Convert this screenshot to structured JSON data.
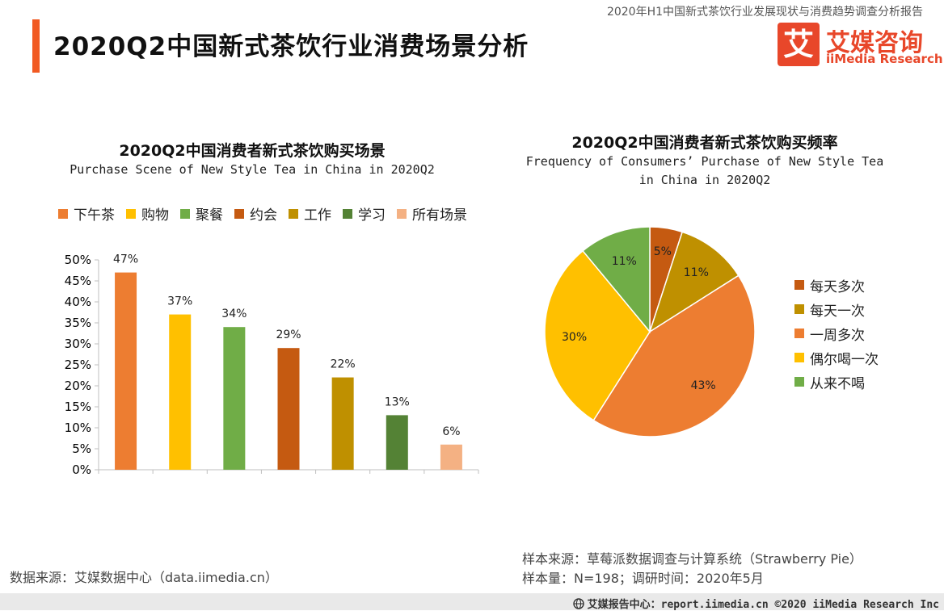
{
  "header": {
    "report_title": "2020年H1中国新式茶饮行业发展现状与消费趋势调查分析报告",
    "page_title": "2020Q2中国新式茶饮行业消费场景分析",
    "accent_color": "#f15a22"
  },
  "logo": {
    "mark": "艾",
    "name_cn": "艾媒咨询",
    "name_en": "iiMedia Research",
    "color": "#e8472a"
  },
  "chart_data": [
    {
      "type": "bar",
      "title": "2020Q2中国消费者新式茶饮购买场景",
      "subtitle": "Purchase Scene of New Style Tea in China in 2020Q2",
      "categories": [
        "下午茶",
        "购物",
        "聚餐",
        "约会",
        "工作",
        "学习",
        "所有场景"
      ],
      "values": [
        47,
        37,
        34,
        29,
        22,
        13,
        6
      ],
      "value_labels": [
        "47%",
        "37%",
        "34%",
        "29%",
        "22%",
        "13%",
        "6%"
      ],
      "colors": [
        "#ED7D31",
        "#FFC000",
        "#70AD47",
        "#C55A11",
        "#BF9000",
        "#548235",
        "#F4B183"
      ],
      "ylim": [
        0,
        50
      ],
      "yticks": [
        0,
        5,
        10,
        15,
        20,
        25,
        30,
        35,
        40,
        45,
        50
      ],
      "ytick_labels": [
        "0%",
        "5%",
        "10%",
        "15%",
        "20%",
        "25%",
        "30%",
        "35%",
        "40%",
        "45%",
        "50%"
      ],
      "legend_position": "top",
      "grid": false
    },
    {
      "type": "pie",
      "title": "2020Q2中国消费者新式茶饮购买频率",
      "subtitle_line1": "Frequency of Consumers’ Purchase of New Style Tea",
      "subtitle_line2": "in China in 2020Q2",
      "categories": [
        "每天多次",
        "每天一次",
        "一周多次",
        "偶尔喝一次",
        "从来不喝"
      ],
      "values": [
        5,
        11,
        43,
        30,
        11
      ],
      "value_labels": [
        "5%",
        "11%",
        "43%",
        "30%",
        "11%"
      ],
      "colors": [
        "#C55A11",
        "#BF9000",
        "#ED7D31",
        "#FFC000",
        "#70AD47"
      ],
      "legend_position": "right"
    }
  ],
  "footer": {
    "data_source": "数据来源：艾媒数据中心（data.iimedia.cn）",
    "sample_source": "样本来源：草莓派数据调查与计算系统（Strawberry Pie）",
    "sample_size": "样本量：N=198；调研时间：2020年5月",
    "bottom_text": "艾媒报告中心：report.iimedia.cn  ©2020  iiMedia Research  Inc",
    "bottom_bar_color": "#e9e9e9"
  }
}
